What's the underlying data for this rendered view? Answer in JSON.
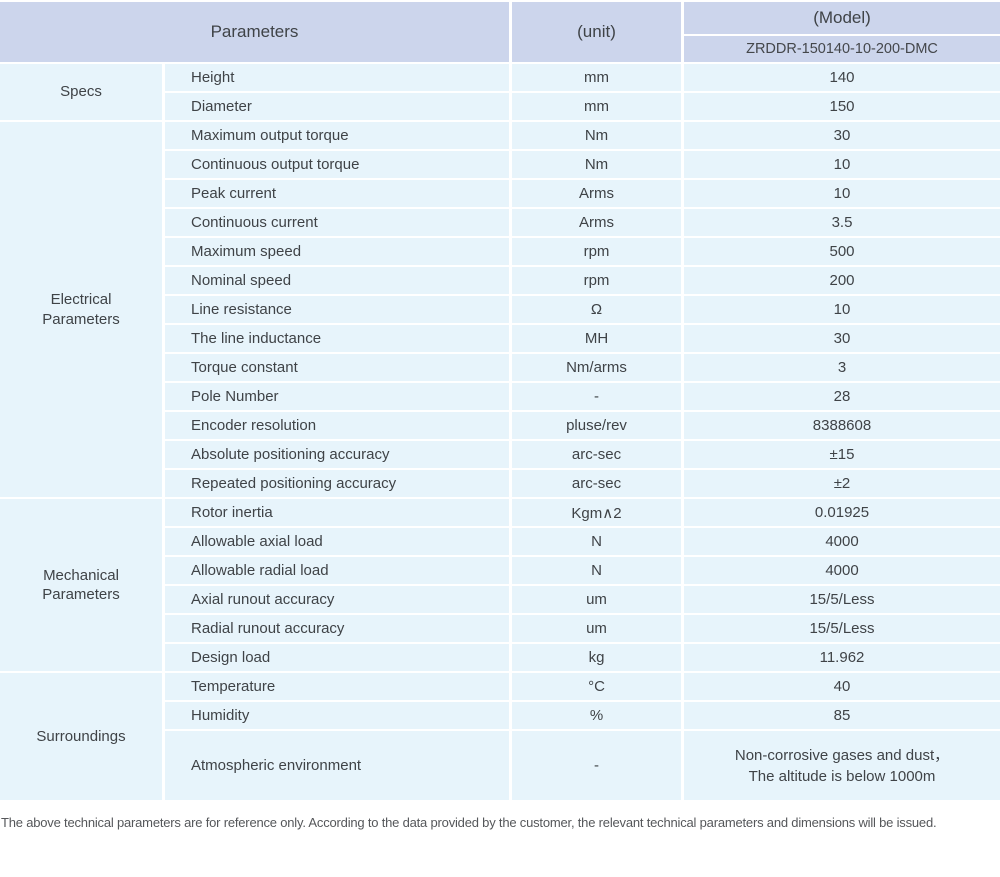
{
  "header": {
    "parameters_label": "Parameters",
    "unit_label": "(unit)",
    "model_label": "(Model)",
    "model_code": "ZRDDR-150140-10-200-DMC"
  },
  "sections": [
    {
      "name": "Specs",
      "rows": [
        {
          "parameter": "Height",
          "unit": "mm",
          "value": "140"
        },
        {
          "parameter": "Diameter",
          "unit": "mm",
          "value": "150"
        }
      ]
    },
    {
      "name": "Electrical Parameters",
      "rows": [
        {
          "parameter": "Maximum output torque",
          "unit": "Nm",
          "value": "30"
        },
        {
          "parameter": "Continuous output torque",
          "unit": "Nm",
          "value": "10"
        },
        {
          "parameter": "Peak current",
          "unit": "Arms",
          "value": "10"
        },
        {
          "parameter": "Continuous current",
          "unit": "Arms",
          "value": "3.5"
        },
        {
          "parameter": "Maximum speed",
          "unit": "rpm",
          "value": "500"
        },
        {
          "parameter": "Nominal speed",
          "unit": "rpm",
          "value": "200"
        },
        {
          "parameter": "Line resistance",
          "unit": "Ω",
          "value": "10"
        },
        {
          "parameter": "The line inductance",
          "unit": "MH",
          "value": "30"
        },
        {
          "parameter": "Torque constant",
          "unit": "Nm/arms",
          "value": "3"
        },
        {
          "parameter": "Pole Number",
          "unit": "-",
          "value": "28"
        },
        {
          "parameter": "Encoder resolution",
          "unit": "pluse/rev",
          "value": "8388608"
        },
        {
          "parameter": "Absolute positioning accuracy",
          "unit": "arc-sec",
          "value": "±15"
        },
        {
          "parameter": "Repeated positioning accuracy",
          "unit": "arc-sec",
          "value": "±2"
        }
      ]
    },
    {
      "name": "Mechanical Parameters",
      "rows": [
        {
          "parameter": "Rotor inertia",
          "unit": "Kgm∧2",
          "value": "0.01925"
        },
        {
          "parameter": "Allowable axial load",
          "unit": "N",
          "value": "4000"
        },
        {
          "parameter": "Allowable radial load",
          "unit": "N",
          "value": "4000"
        },
        {
          "parameter": "Axial runout accuracy",
          "unit": "um",
          "value": "15/5/Less"
        },
        {
          "parameter": "Radial runout accuracy",
          "unit": "um",
          "value": "15/5/Less"
        },
        {
          "parameter": "Design load",
          "unit": "kg",
          "value": "11.962"
        }
      ]
    },
    {
      "name": "Surroundings",
      "rows": [
        {
          "parameter": "Temperature",
          "unit": "°C",
          "value": "40"
        },
        {
          "parameter": "Humidity",
          "unit": "%",
          "value": "85"
        },
        {
          "parameter": "Atmospheric environment",
          "unit": "-",
          "value_lines": [
            "Non-corrosive gases and dust，",
            "The altitude is below 1000m"
          ],
          "tall": true
        }
      ]
    }
  ],
  "footer": {
    "note": "The above technical parameters are for reference only. According to the data provided by the customer, the relevant technical parameters and dimensions will be issued."
  },
  "colors": {
    "header_bg": "#ccd5ec",
    "row_bg": "#e7f4fb",
    "text": "#3f4347",
    "footer_text": "#55575a",
    "divider": "#ffffff"
  }
}
